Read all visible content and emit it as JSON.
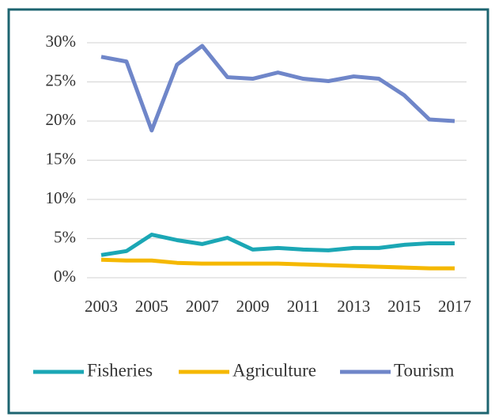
{
  "chart_data": {
    "type": "line",
    "x": [
      2003,
      2004,
      2005,
      2006,
      2007,
      2008,
      2009,
      2010,
      2011,
      2012,
      2013,
      2014,
      2015,
      2016,
      2017
    ],
    "xlim": [
      2003,
      2017
    ],
    "xticks": [
      2003,
      2005,
      2007,
      2009,
      2011,
      2013,
      2015,
      2017
    ],
    "ylim": [
      0,
      30
    ],
    "yticks": [
      {
        "value": 0,
        "label": "0%"
      },
      {
        "value": 5,
        "label": "5%"
      },
      {
        "value": 10,
        "label": "10%"
      },
      {
        "value": 15,
        "label": "15%"
      },
      {
        "value": 20,
        "label": "20%"
      },
      {
        "value": 25,
        "label": "25%"
      },
      {
        "value": 30,
        "label": "30%"
      }
    ],
    "grid": true,
    "legend": "bottom",
    "series": [
      {
        "name": "Fisheries",
        "color": "#1ba7b5",
        "values": [
          2.9,
          3.4,
          5.5,
          4.8,
          4.3,
          5.1,
          3.6,
          3.8,
          3.6,
          3.5,
          3.8,
          3.8,
          4.2,
          4.4,
          4.4
        ]
      },
      {
        "name": "Agriculture",
        "color": "#f5b800",
        "values": [
          2.3,
          2.2,
          2.2,
          1.9,
          1.8,
          1.8,
          1.8,
          1.8,
          1.7,
          1.6,
          1.5,
          1.4,
          1.3,
          1.2,
          1.2
        ]
      },
      {
        "name": "Tourism",
        "color": "#6f86c9",
        "values": [
          28.2,
          27.6,
          18.8,
          27.2,
          29.6,
          25.6,
          25.4,
          26.2,
          25.4,
          25.1,
          25.7,
          25.4,
          23.3,
          20.2,
          20.0
        ]
      }
    ]
  }
}
